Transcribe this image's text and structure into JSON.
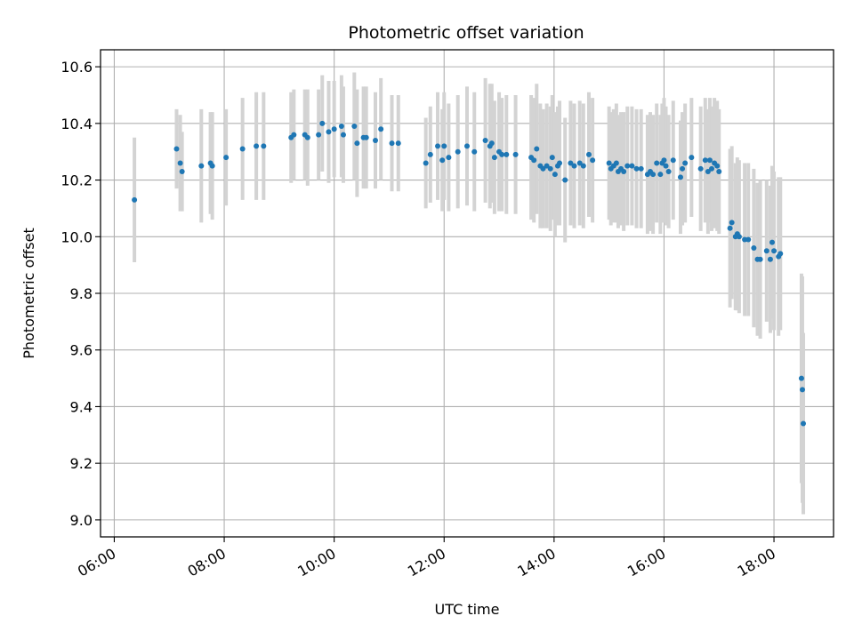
{
  "chart_data": {
    "type": "scatter",
    "title": "Photometric offset variation",
    "xlabel": "UTC time",
    "ylabel": "Photometric offset",
    "x_ticks": [
      "06:00",
      "08:00",
      "10:00",
      "12:00",
      "14:00",
      "16:00",
      "18:00"
    ],
    "y_ticks": [
      "9.0",
      "9.2",
      "9.4",
      "9.6",
      "9.8",
      "10.0",
      "10.2",
      "10.4",
      "10.6"
    ],
    "xlim": [
      "05:45",
      "19:05"
    ],
    "ylim": [
      8.94,
      10.66
    ],
    "grid": true,
    "colors": {
      "points": "#1f77b4",
      "error_bars": "#d3d3d3",
      "grid": "#b0b0b0"
    },
    "series": [
      {
        "x": [
          "06:22",
          "07:08",
          "07:12",
          "07:14",
          "07:35",
          "07:45",
          "07:47",
          "08:02",
          "08:20",
          "08:35",
          "08:43",
          "09:13",
          "09:16",
          "09:28",
          "09:31",
          "09:43",
          "09:47",
          "09:54",
          "10:00",
          "10:08",
          "10:10",
          "10:22",
          "10:25",
          "10:32",
          "10:35",
          "10:45",
          "10:51",
          "11:03",
          "11:10",
          "11:40",
          "11:45",
          "11:53",
          "11:58",
          "12:00",
          "12:05",
          "12:15",
          "12:25",
          "12:33",
          "12:45",
          "12:50",
          "12:52",
          "12:55",
          "13:00",
          "13:03",
          "13:08",
          "13:18",
          "13:35",
          "13:38",
          "13:41",
          "13:45",
          "13:48",
          "13:52",
          "13:56",
          "13:58",
          "14:01",
          "14:04",
          "14:06",
          "14:12",
          "14:18",
          "14:22",
          "14:28",
          "14:32",
          "14:38",
          "14:42",
          "15:00",
          "15:02",
          "15:05",
          "15:08",
          "15:10",
          "15:13",
          "15:16",
          "15:20",
          "15:25",
          "15:30",
          "15:35",
          "15:42",
          "15:45",
          "15:48",
          "15:52",
          "15:56",
          "15:58",
          "16:00",
          "16:02",
          "16:05",
          "16:10",
          "16:18",
          "16:20",
          "16:23",
          "16:30",
          "16:40",
          "16:45",
          "16:48",
          "16:50",
          "16:52",
          "16:55",
          "16:58",
          "17:00",
          "17:12",
          "17:14",
          "17:18",
          "17:20",
          "17:22",
          "17:28",
          "17:32",
          "17:38",
          "17:42",
          "17:45",
          "17:52",
          "17:56",
          "17:58",
          "18:00",
          "18:05",
          "18:07",
          "18:30",
          "18:31",
          "18:32"
        ],
        "y": [
          10.13,
          10.31,
          10.26,
          10.23,
          10.25,
          10.26,
          10.25,
          10.28,
          10.31,
          10.32,
          10.32,
          10.35,
          10.36,
          10.36,
          10.35,
          10.36,
          10.4,
          10.37,
          10.38,
          10.39,
          10.36,
          10.39,
          10.33,
          10.35,
          10.35,
          10.34,
          10.38,
          10.33,
          10.33,
          10.26,
          10.29,
          10.32,
          10.27,
          10.32,
          10.28,
          10.3,
          10.32,
          10.3,
          10.34,
          10.32,
          10.33,
          10.28,
          10.3,
          10.29,
          10.29,
          10.29,
          10.28,
          10.27,
          10.31,
          10.25,
          10.24,
          10.25,
          10.24,
          10.28,
          10.22,
          10.25,
          10.26,
          10.2,
          10.26,
          10.25,
          10.26,
          10.25,
          10.29,
          10.27,
          10.26,
          10.24,
          10.25,
          10.26,
          10.23,
          10.24,
          10.23,
          10.25,
          10.25,
          10.24,
          10.24,
          10.22,
          10.23,
          10.22,
          10.26,
          10.22,
          10.26,
          10.27,
          10.25,
          10.23,
          10.27,
          10.21,
          10.24,
          10.26,
          10.28,
          10.24,
          10.27,
          10.23,
          10.27,
          10.24,
          10.26,
          10.25,
          10.23,
          10.03,
          10.05,
          10.0,
          10.01,
          10.0,
          9.99,
          9.99,
          9.96,
          9.92,
          9.92,
          9.95,
          9.92,
          9.98,
          9.95,
          9.93,
          9.94,
          9.5,
          9.46,
          9.34
        ],
        "err": [
          0.22,
          0.14,
          0.17,
          0.14,
          0.2,
          0.18,
          0.19,
          0.17,
          0.18,
          0.19,
          0.19,
          0.16,
          0.16,
          0.16,
          0.17,
          0.16,
          0.17,
          0.18,
          0.17,
          0.18,
          0.17,
          0.19,
          0.19,
          0.18,
          0.18,
          0.17,
          0.18,
          0.17,
          0.17,
          0.16,
          0.17,
          0.19,
          0.18,
          0.19,
          0.19,
          0.2,
          0.21,
          0.21,
          0.22,
          0.22,
          0.21,
          0.2,
          0.21,
          0.2,
          0.21,
          0.21,
          0.22,
          0.22,
          0.23,
          0.22,
          0.21,
          0.22,
          0.22,
          0.22,
          0.22,
          0.21,
          0.22,
          0.22,
          0.22,
          0.22,
          0.22,
          0.22,
          0.22,
          0.22,
          0.2,
          0.2,
          0.2,
          0.21,
          0.2,
          0.2,
          0.21,
          0.21,
          0.21,
          0.21,
          0.21,
          0.21,
          0.21,
          0.21,
          0.21,
          0.21,
          0.21,
          0.22,
          0.21,
          0.2,
          0.21,
          0.2,
          0.2,
          0.21,
          0.21,
          0.22,
          0.22,
          0.22,
          0.22,
          0.22,
          0.23,
          0.23,
          0.22,
          0.28,
          0.27,
          0.26,
          0.27,
          0.27,
          0.27,
          0.27,
          0.28,
          0.27,
          0.28,
          0.25,
          0.26,
          0.27,
          0.28,
          0.28,
          0.27,
          0.37,
          0.4,
          0.32
        ]
      }
    ]
  }
}
